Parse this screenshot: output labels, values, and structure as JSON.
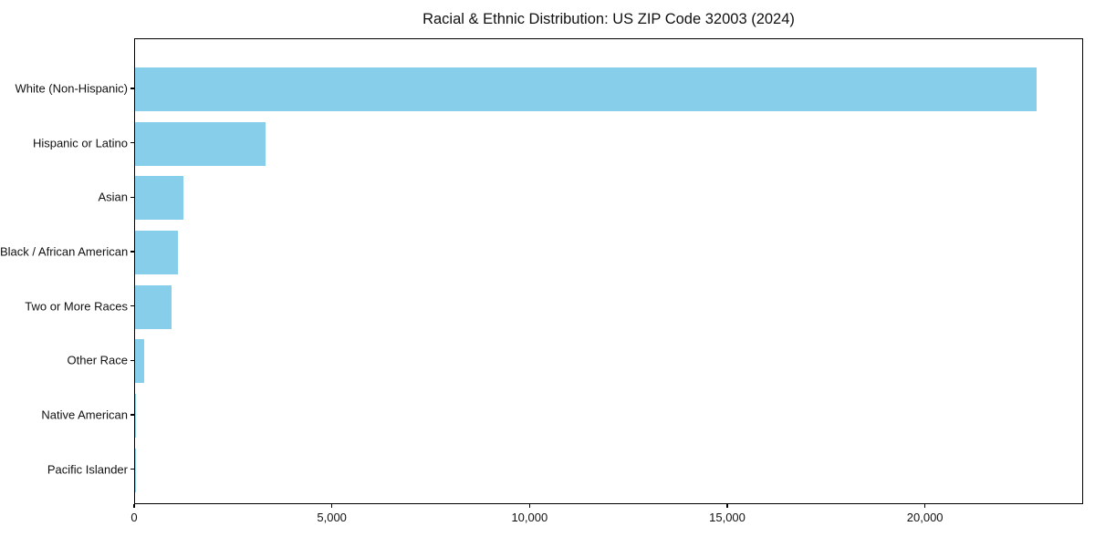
{
  "chart_data": {
    "type": "bar",
    "orientation": "horizontal",
    "title": "Racial & Ethnic Distribution: US ZIP Code 32003 (2024)",
    "categories": [
      "White (Non-Hispanic)",
      "Hispanic or Latino",
      "Asian",
      "Black / African American",
      "Two or More Races",
      "Other Race",
      "Native American",
      "Pacific Islander"
    ],
    "values": [
      22800,
      3290,
      1230,
      1090,
      930,
      230,
      30,
      10
    ],
    "xlabel": "",
    "ylabel": "",
    "xlim": [
      0,
      24000
    ],
    "x_ticks": [
      0,
      5000,
      10000,
      15000,
      20000
    ],
    "x_tick_labels": [
      "0",
      "5,000",
      "10,000",
      "15,000",
      "20,000"
    ],
    "bar_color": "#87CEEB",
    "text_color": "#111111",
    "grid": false,
    "legend": false,
    "categories_order": "top-to-bottom"
  }
}
